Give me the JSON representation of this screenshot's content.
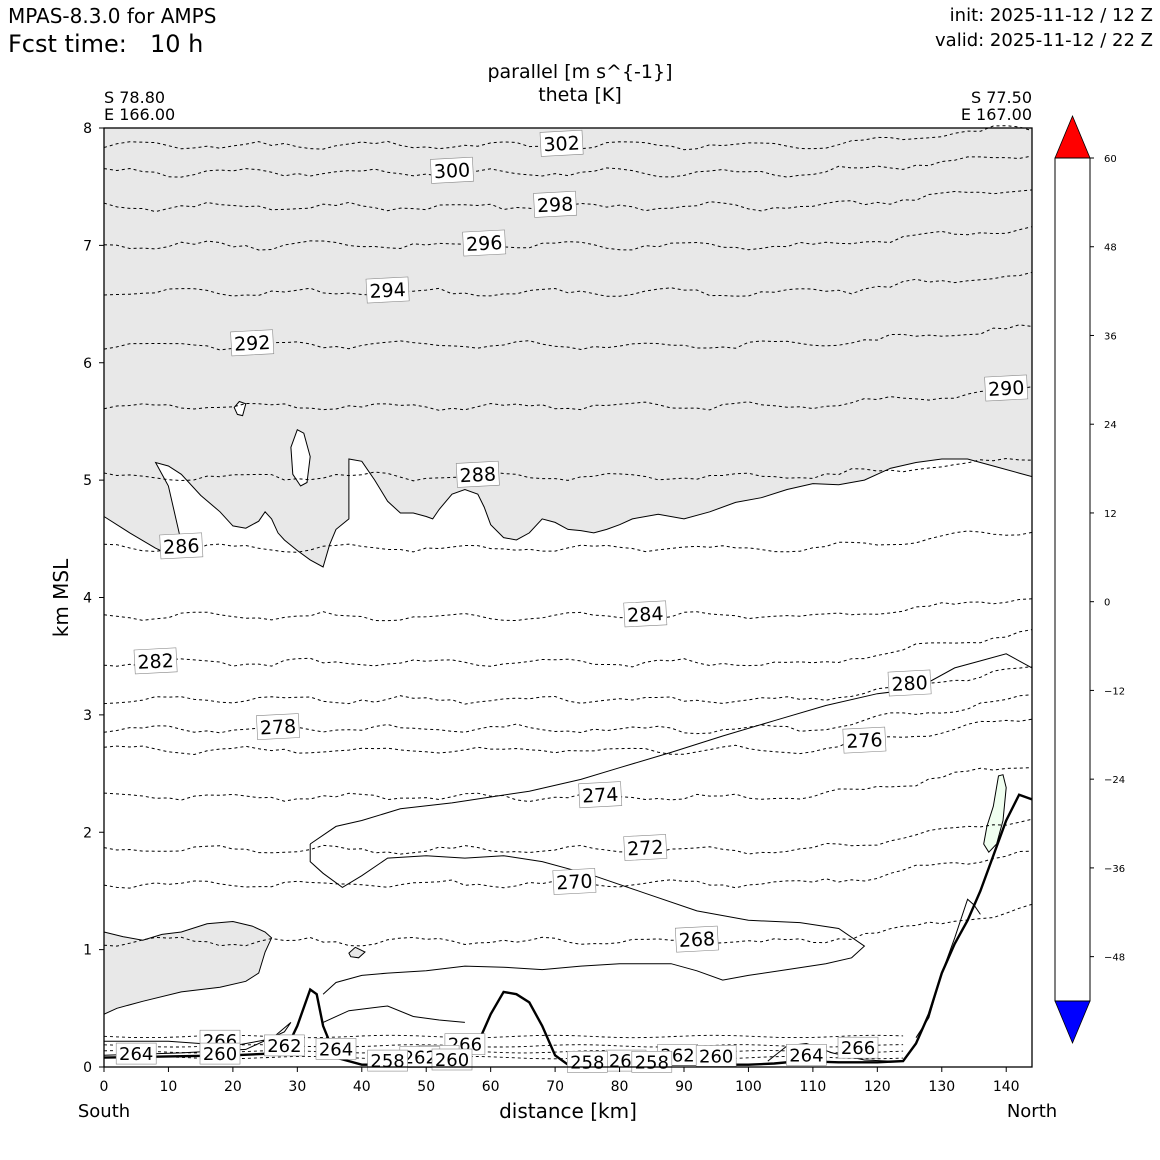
{
  "header": {
    "model": "MPAS-8.3.0 for AMPS",
    "fcst_label": "Fcst time:",
    "fcst_value": "10 h",
    "init": "init: 2025-11-12 / 12 Z",
    "valid": "valid: 2025-11-12 / 22 Z"
  },
  "chart_data": {
    "type": "cross-section-contour",
    "title_line1": "parallel [m s^{-1}]",
    "title_line2": "theta [K]",
    "xlabel": "distance [km]",
    "ylabel": "km MSL",
    "xlim": [
      0,
      144
    ],
    "ylim": [
      0,
      8
    ],
    "x_ticks": [
      "0",
      "10",
      "20",
      "30",
      "40",
      "50",
      "60",
      "70",
      "80",
      "90",
      "100",
      "110",
      "120",
      "130",
      "140"
    ],
    "y_ticks": [
      "0",
      "1",
      "2",
      "3",
      "4",
      "5",
      "6",
      "7",
      "8"
    ],
    "left_end": {
      "lat": "S 78.80",
      "lon": "E 166.00",
      "dir": "South"
    },
    "right_end": {
      "lat": "S 77.50",
      "lon": "E 167.00",
      "dir": "North"
    },
    "theta_contours": [
      {
        "label": "302",
        "level": 7.85,
        "label_x": 71
      },
      {
        "label": "300",
        "level": 7.62,
        "label_x": 54
      },
      {
        "label": "298",
        "level": 7.33,
        "label_x": 70
      },
      {
        "label": "296",
        "level": 7.0,
        "label_x": 59
      },
      {
        "label": "294",
        "level": 6.6,
        "label_x": 44
      },
      {
        "label": "292",
        "level": 6.15,
        "label_x": 23
      },
      {
        "label": "290",
        "level": 5.63,
        "label_x": 140
      },
      {
        "label": "288",
        "level": 5.03,
        "label_x": 58
      },
      {
        "label": "286",
        "level": 4.42,
        "label_x": 12
      },
      {
        "label": "284",
        "level": 3.84,
        "label_x": 84
      },
      {
        "label": "282",
        "level": 3.44,
        "label_x": 8
      },
      {
        "label": "280",
        "level": 3.13,
        "label_x": 125
      },
      {
        "label": "278",
        "level": 2.88,
        "label_x": 27
      },
      {
        "label": "276",
        "level": 2.7,
        "label_x": 118
      },
      {
        "label": "274",
        "level": 2.3,
        "label_x": 77
      },
      {
        "label": "272",
        "level": 1.85,
        "label_x": 84
      },
      {
        "label": "270",
        "level": 1.56,
        "label_x": 73
      },
      {
        "label": "268",
        "level": 1.07,
        "label_x": 92
      }
    ],
    "surface_labels": [
      "266",
      "266",
      "266",
      "264",
      "264",
      "264",
      "264",
      "262",
      "262",
      "262",
      "260",
      "260",
      "260",
      "260",
      "258",
      "258",
      "258"
    ],
    "colorbar": {
      "ticks": [
        "60",
        "48",
        "36",
        "24",
        "12",
        "0",
        "−12",
        "−24",
        "−36",
        "−48"
      ],
      "colors": [
        "#ff0000",
        "#ff7070",
        "#ffe870",
        "#ffff30",
        "#ffff80",
        "#ffffb0",
        "#c0c0a8",
        "#a8a8a8",
        "#e8e8e8",
        "#ffffff",
        "#ffffff",
        "#f0fff0",
        "#d8ffd8",
        "#a8ffa8",
        "#60ff60",
        "#20ff20",
        "#00e060",
        "#00c8c8",
        "#0000ff"
      ],
      "over_color": "#ff0000",
      "under_color": "#0000ff"
    },
    "shading": {
      "positive_12": "#e8e8e8",
      "negative_0": "#f0fff0"
    }
  }
}
